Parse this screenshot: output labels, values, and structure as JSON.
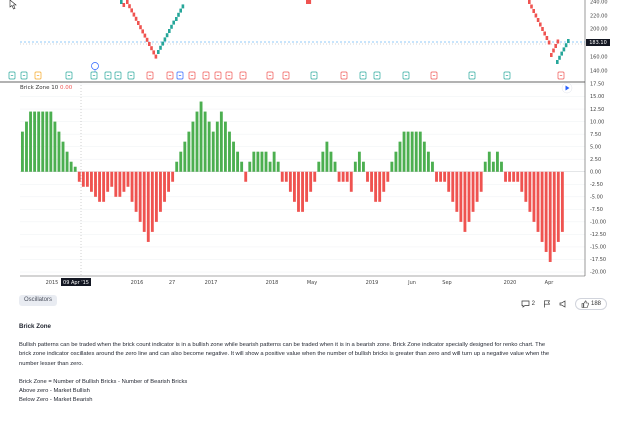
{
  "chart_data": [
    {
      "type": "line",
      "title": "",
      "y_ticks": [
        "240.00",
        "220.00",
        "200.00",
        "180.00",
        "160.00",
        "140.00"
      ],
      "last_price_label": "183.10",
      "colors": {
        "up": "#26a69a",
        "down": "#ef5350",
        "axis": "#555555"
      }
    },
    {
      "type": "bar",
      "title": "Brick Zone 10",
      "value_label": "0.00",
      "y_ticks": [
        "17.50",
        "15.00",
        "12.50",
        "10.00",
        "7.50",
        "5.00",
        "2.50",
        "0.00",
        "-2.50",
        "-5.00",
        "-7.50",
        "-10.00",
        "-12.50",
        "-15.00",
        "-17.50",
        "-20.00"
      ],
      "ylim": [
        -20,
        17.5
      ],
      "x_ticks": [
        "2015",
        "09 Apr '15",
        "2016",
        "27",
        "2017",
        "2018",
        "May",
        "2019",
        "Jun",
        "Sep",
        "2020",
        "Apr"
      ],
      "values": [
        8,
        10,
        12,
        12,
        12,
        12,
        12,
        12,
        10,
        8,
        6,
        4,
        2,
        1,
        -2,
        -3,
        -3,
        -4,
        -5,
        -6,
        -6,
        -4,
        -3,
        -5,
        -5,
        -4,
        -3,
        -6,
        -8,
        -10,
        -12,
        -14,
        -12,
        -10,
        -8,
        -6,
        -4,
        -2,
        2,
        4,
        6,
        8,
        10,
        12,
        14,
        12,
        10,
        8,
        10,
        12,
        10,
        8,
        6,
        4,
        2,
        -2,
        2,
        4,
        4,
        4,
        4,
        2,
        4,
        2,
        -2,
        -2,
        -4,
        -6,
        -8,
        -8,
        -6,
        -4,
        -2,
        2,
        4,
        6,
        4,
        2,
        -2,
        -2,
        -2,
        -4,
        2,
        4,
        2,
        -2,
        -4,
        -6,
        -6,
        -4,
        -2,
        2,
        4,
        6,
        8,
        8,
        8,
        8,
        8,
        6,
        4,
        2,
        -2,
        -2,
        -2,
        -4,
        -6,
        -8,
        -10,
        -12,
        -10,
        -8,
        -6,
        -4,
        2,
        4,
        2,
        4,
        2,
        -2,
        -2,
        -2,
        -2,
        -4,
        -6,
        -8,
        -10,
        -12,
        -14,
        -16,
        -18,
        -16,
        -14,
        -12
      ],
      "colors": {
        "up": "#4caf50",
        "down": "#ef5350"
      }
    }
  ],
  "tags": {
    "oscillators": "Oscillators"
  },
  "actions": {
    "comments": "2",
    "likes": "188"
  },
  "doc": {
    "title": "Brick Zone",
    "p1_line1": "Bullish patterns can be traded when the brick count indicator is in a bullish zone while bearish patterns can be traded when it is in a bearish zone. Brick Zone indicator specially designed for renko chart. The",
    "p1_line2": "brick zone indicator oscillates around the zero line and can also become negative. It will show a positive value when the number of bullish bricks is greater than zero and will turn up a negative value when the",
    "p1_line3": "number lesser than zero.",
    "formula": "Brick Zone = Number of Bullish Bricks - Number of Bearish Bricks",
    "above": "Above zero - Market Bullish",
    "below": "Below Zero - Market Bearish"
  }
}
